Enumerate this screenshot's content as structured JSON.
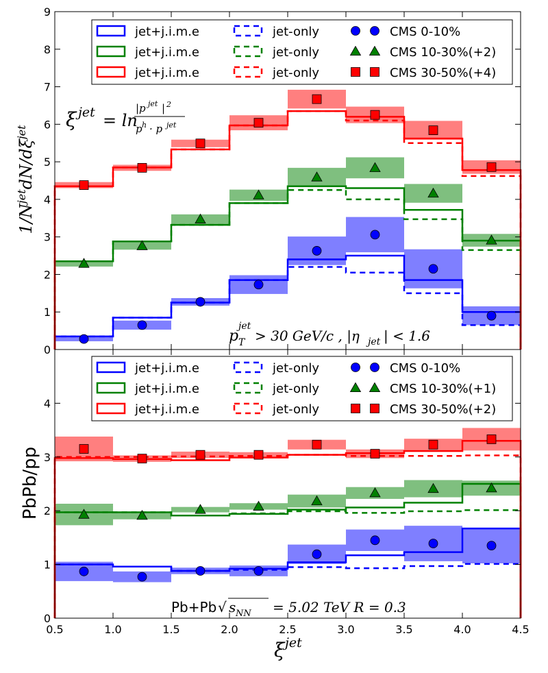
{
  "chart_data": [
    {
      "type": "step",
      "panel": "top",
      "ylabel": "1/N^jet dN/dξ^jet",
      "ylim": [
        0,
        9
      ],
      "yticks": [
        0,
        1,
        2,
        3,
        4,
        5,
        6,
        7,
        8,
        9
      ],
      "xlim": [
        0.5,
        4.5
      ],
      "bin_edges": [
        0.5,
        1.0,
        1.5,
        2.0,
        2.5,
        3.0,
        3.5,
        4.0,
        4.5
      ],
      "bin_centers": [
        0.75,
        1.25,
        1.75,
        2.25,
        2.75,
        3.25,
        3.75,
        4.25
      ],
      "formula": "ξ^jet = ln |p^jet|² / (p^h · p^jet)",
      "cut_label": "p_T^jet > 30 GeV/c , |η_jet| < 1.6",
      "legend": [
        [
          "jet+j.i.m.e",
          "jet-only",
          "CMS 0-10%"
        ],
        [
          "jet+j.i.m.e",
          "jet-only",
          "CMS 10-30%(+2)"
        ],
        [
          "jet+j.i.m.e",
          "jet-only",
          "CMS 30-50%(+4)"
        ]
      ],
      "series": [
        {
          "name": "0-10%",
          "color": "#0000ff",
          "marker": "circle",
          "jime": [
            0.35,
            0.85,
            1.25,
            1.85,
            2.4,
            2.5,
            1.85,
            1.0
          ],
          "jet_only": [
            0.35,
            0.85,
            1.25,
            1.85,
            2.2,
            2.05,
            1.5,
            0.65
          ],
          "cms": [
            0.28,
            0.65,
            1.27,
            1.73,
            2.63,
            3.06,
            2.15,
            0.9
          ],
          "cms_err": [
            0.06,
            0.12,
            0.1,
            0.25,
            0.38,
            0.47,
            0.52,
            0.25
          ]
        },
        {
          "name": "10-30%(+2)",
          "color": "#008000",
          "marker": "triangle",
          "jime": [
            2.35,
            2.88,
            3.32,
            3.9,
            4.35,
            4.3,
            3.72,
            2.9
          ],
          "jet_only": [
            2.35,
            2.88,
            3.32,
            3.9,
            4.25,
            4.0,
            3.47,
            2.65
          ],
          "cms": [
            2.29,
            2.76,
            3.47,
            4.11,
            4.59,
            4.84,
            4.16,
            2.91
          ],
          "cms_err": [
            0.08,
            0.1,
            0.13,
            0.15,
            0.25,
            0.28,
            0.25,
            0.17
          ]
        },
        {
          "name": "30-50%(+4)",
          "color": "#ff0000",
          "marker": "square",
          "jime": [
            4.35,
            4.85,
            5.33,
            5.97,
            6.35,
            6.2,
            5.62,
            4.78
          ],
          "jet_only": [
            4.35,
            4.85,
            5.33,
            5.97,
            6.35,
            6.1,
            5.5,
            4.62
          ],
          "cms": [
            4.38,
            4.84,
            5.49,
            6.04,
            6.67,
            6.25,
            5.84,
            4.86
          ],
          "cms_err": [
            0.08,
            0.08,
            0.1,
            0.2,
            0.25,
            0.22,
            0.25,
            0.18
          ]
        }
      ]
    },
    {
      "type": "step",
      "panel": "bottom",
      "xlabel": "ξ^jet",
      "ylabel": "PbPb/pp",
      "ylim": [
        0,
        5
      ],
      "yticks": [
        0,
        1,
        2,
        3,
        4
      ],
      "xlim": [
        0.5,
        4.5
      ],
      "xticks": [
        0.5,
        1.0,
        1.5,
        2.0,
        2.5,
        3.0,
        3.5,
        4.0,
        4.5
      ],
      "bin_edges": [
        0.5,
        1.0,
        1.5,
        2.0,
        2.5,
        3.0,
        3.5,
        4.0,
        4.5
      ],
      "bin_centers": [
        0.75,
        1.25,
        1.75,
        2.25,
        2.75,
        3.25,
        3.75,
        4.25
      ],
      "system_label": "Pb+Pb √s_NN = 5.02 TeV   R = 0.3",
      "legend": [
        [
          "jet+j.i.m.e",
          "jet-only",
          "CMS 0-10%"
        ],
        [
          "jet+j.i.m.e",
          "jet-only",
          "CMS 10-30%(+1)"
        ],
        [
          "jet+j.i.m.e",
          "jet-only",
          "CMS 30-50%(+2)"
        ]
      ],
      "series": [
        {
          "name": "0-10%",
          "color": "#0000ff",
          "marker": "circle",
          "jime": [
            1.0,
            0.96,
            0.88,
            0.92,
            1.04,
            1.17,
            1.23,
            1.67
          ],
          "jet_only": [
            1.0,
            0.96,
            0.88,
            0.9,
            0.95,
            0.93,
            0.97,
            1.01
          ],
          "cms": [
            0.87,
            0.77,
            0.88,
            0.88,
            1.19,
            1.45,
            1.39,
            1.35
          ],
          "cms_err": [
            0.18,
            0.1,
            0.06,
            0.1,
            0.18,
            0.2,
            0.33,
            0.33
          ]
        },
        {
          "name": "10-30%(+1)",
          "color": "#008000",
          "marker": "triangle",
          "jime": [
            1.97,
            1.97,
            1.91,
            1.94,
            2.02,
            2.06,
            2.15,
            2.5
          ],
          "jet_only": [
            1.97,
            1.97,
            1.91,
            1.95,
            1.99,
            1.96,
            1.99,
            2.01
          ],
          "cms": [
            1.93,
            1.91,
            2.02,
            2.08,
            2.18,
            2.33,
            2.41,
            2.42
          ],
          "cms_err": [
            0.2,
            0.07,
            0.05,
            0.06,
            0.12,
            0.11,
            0.16,
            0.14
          ]
        },
        {
          "name": "30-50%(+2)",
          "color": "#ff0000",
          "marker": "square",
          "jime": [
            2.98,
            2.96,
            2.94,
            2.99,
            3.04,
            3.07,
            3.11,
            3.3
          ],
          "jet_only": [
            3.0,
            3.0,
            3.01,
            3.02,
            3.04,
            3.02,
            3.02,
            3.03
          ],
          "cms": [
            3.15,
            2.97,
            3.04,
            3.04,
            3.23,
            3.06,
            3.23,
            3.33
          ],
          "cms_err": [
            0.23,
            0.06,
            0.06,
            0.05,
            0.09,
            0.08,
            0.11,
            0.21
          ]
        }
      ]
    }
  ]
}
